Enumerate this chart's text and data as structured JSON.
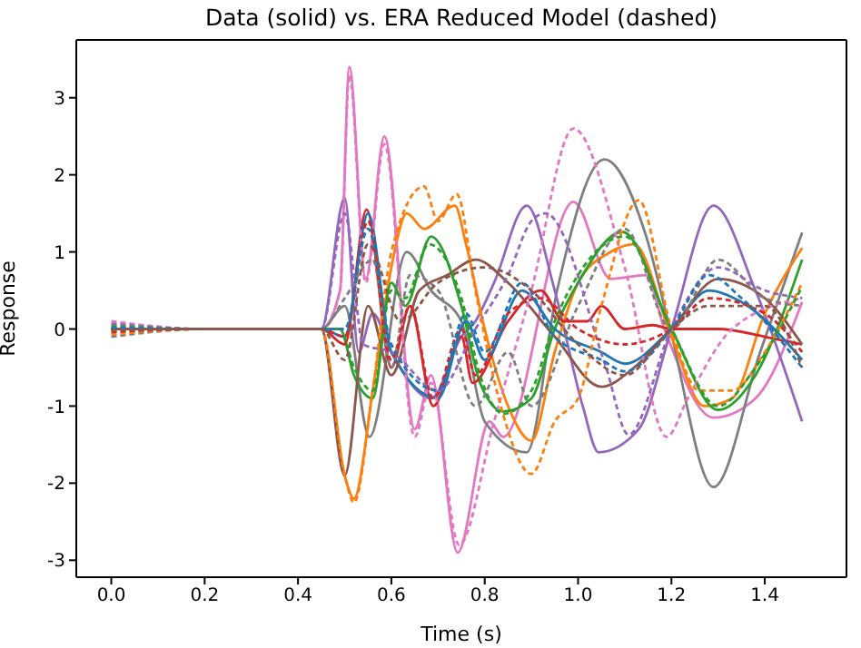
{
  "chart_data": {
    "type": "line",
    "title": "Data (solid) vs. ERA Reduced Model (dashed)",
    "xlabel": "Time (s)",
    "ylabel": "Response",
    "xlim": [
      -0.075,
      1.575
    ],
    "ylim": [
      -3.22,
      3.75
    ],
    "xticks": [
      {
        "value": 0,
        "label": "0.0"
      },
      0.2,
      0.4,
      0.6,
      0.8,
      {
        "value": 1,
        "label": "1.0"
      },
      1.2,
      1.4
    ],
    "yticks": [
      -3,
      -2,
      -1,
      0,
      1,
      2,
      3
    ],
    "marker": "none",
    "series": [
      {
        "color": "#e377c2",
        "line_style": "solid",
        "x": [
          0,
          0.2,
          0.45,
          0.49,
          0.51,
          0.545,
          0.585,
          0.65,
          0.685,
          0.742,
          0.81,
          0.84,
          0.99,
          1.07,
          1.145,
          1.185,
          1.29,
          1.38,
          1.48
        ],
        "values": [
          0,
          0,
          0,
          0.5,
          3.4,
          0.65,
          2.5,
          -1.3,
          -0.6,
          -2.9,
          -1.2,
          -1.4,
          1.65,
          0.65,
          0.7,
          0,
          -1.15,
          -0.9,
          0.35
        ]
      },
      {
        "color": "#e377c2",
        "line_style": "dashed",
        "x": [
          0,
          0.2,
          0.45,
          0.49,
          0.51,
          0.545,
          0.585,
          0.65,
          0.685,
          0.745,
          0.82,
          0.9,
          0.99,
          1.1,
          1.19,
          1.235,
          1.33,
          1.48
        ],
        "values": [
          0.1,
          0,
          0,
          0.5,
          3.3,
          0.6,
          2.4,
          -1.4,
          -0.7,
          -2.8,
          -1.2,
          0.5,
          2.6,
          0.8,
          -1.4,
          -0.9,
          0,
          0.4
        ]
      },
      {
        "color": "#7f7f7f",
        "line_style": "solid",
        "x": [
          0,
          0.2,
          0.45,
          0.5,
          0.553,
          0.633,
          0.685,
          0.75,
          0.8,
          0.89,
          0.955,
          1.056,
          1.146,
          1.197,
          1.29,
          1.39,
          1.48
        ],
        "values": [
          0,
          0,
          0,
          0.3,
          -1.4,
          1.0,
          0.5,
          0.1,
          -1.2,
          -1.6,
          0.5,
          2.2,
          1.2,
          0,
          -2.05,
          -0.3,
          1.25
        ]
      },
      {
        "color": "#7f7f7f",
        "line_style": "dashed",
        "x": [
          0,
          0.2,
          0.45,
          0.5,
          0.56,
          0.6,
          0.64,
          0.7,
          0.78,
          0.85,
          0.9,
          1.0,
          1.1,
          1.2,
          1.3,
          1.4,
          1.48
        ],
        "values": [
          -0.1,
          0,
          0,
          0.4,
          0.9,
          -0.5,
          0.7,
          0.5,
          -1.0,
          -0.3,
          -1.0,
          0.3,
          1.3,
          0,
          0.9,
          0.4,
          0.3
        ]
      },
      {
        "color": "#9467bd",
        "line_style": "solid",
        "x": [
          0,
          0.2,
          0.45,
          0.5,
          0.53,
          0.56,
          0.6,
          0.685,
          0.75,
          0.78,
          0.82,
          0.89,
          0.95,
          1.01,
          1.044,
          1.13,
          1.2,
          1.29,
          1.38,
          1.48
        ],
        "values": [
          0,
          0,
          0,
          1.7,
          -0.3,
          0.2,
          -0.3,
          -0.9,
          -0.1,
          0.1,
          0.6,
          1.6,
          0.5,
          -1.0,
          -1.6,
          -1.3,
          0,
          1.6,
          0.5,
          -1.2
        ]
      },
      {
        "color": "#9467bd",
        "line_style": "dashed",
        "x": [
          0,
          0.2,
          0.45,
          0.5,
          0.54,
          0.6,
          0.7,
          0.78,
          0.85,
          0.9,
          0.93,
          1.06,
          1.108,
          1.2,
          1.3,
          1.4,
          1.48
        ],
        "values": [
          0.07,
          0,
          0,
          1.5,
          -0.2,
          -0.3,
          -0.8,
          0,
          0.7,
          1.4,
          1.5,
          -0.5,
          -1.37,
          0,
          0.8,
          0.5,
          0.4
        ]
      },
      {
        "color": "#ff7f0e",
        "line_style": "solid",
        "x": [
          0,
          0.2,
          0.45,
          0.5,
          0.52,
          0.56,
          0.6,
          0.633,
          0.67,
          0.736,
          0.76,
          0.8,
          0.85,
          0.9,
          0.95,
          1.0,
          1.07,
          1.12,
          1.2,
          1.27,
          1.33,
          1.4,
          1.48
        ],
        "values": [
          0,
          0,
          0,
          -1.9,
          -2.2,
          -0.8,
          0.8,
          1.5,
          1.3,
          1.6,
          1.1,
          0,
          -1.0,
          -1.45,
          -0.3,
          0.6,
          1.0,
          1.1,
          -0.1,
          -1.0,
          -0.9,
          0.2,
          1.05
        ]
      },
      {
        "color": "#ff7f0e",
        "line_style": "dashed",
        "x": [
          0,
          0.2,
          0.45,
          0.5,
          0.52,
          0.56,
          0.6,
          0.67,
          0.7,
          0.74,
          0.78,
          0.83,
          0.9,
          0.95,
          1.0,
          1.05,
          1.13,
          1.2,
          1.26,
          1.33,
          1.4,
          1.48
        ],
        "values": [
          -0.07,
          0,
          0,
          -1.9,
          -2.25,
          -0.8,
          1.0,
          1.85,
          1.4,
          1.75,
          0.5,
          -0.9,
          -1.88,
          -1.2,
          -0.9,
          0.3,
          1.67,
          0,
          -0.8,
          -0.8,
          -0.3,
          0.6
        ]
      },
      {
        "color": "#2ca02c",
        "line_style": "solid",
        "x": [
          0,
          0.2,
          0.45,
          0.49,
          0.52,
          0.56,
          0.6,
          0.63,
          0.685,
          0.75,
          0.79,
          0.84,
          0.9,
          0.95,
          1.0,
          1.095,
          1.2,
          1.3,
          1.38,
          1.48
        ],
        "values": [
          0,
          0,
          0,
          0,
          -0.6,
          -0.9,
          0.6,
          0.3,
          1.2,
          0.3,
          -0.7,
          -1.07,
          -0.9,
          0,
          0.6,
          1.26,
          0,
          -1.05,
          -0.6,
          0.9
        ]
      },
      {
        "color": "#2ca02c",
        "line_style": "dashed",
        "x": [
          0,
          0.2,
          0.45,
          0.49,
          0.52,
          0.56,
          0.6,
          0.63,
          0.68,
          0.75,
          0.79,
          0.84,
          0.9,
          0.95,
          1.0,
          1.1,
          1.2,
          1.3,
          1.38,
          1.48
        ],
        "values": [
          0.04,
          0,
          0,
          0,
          -0.5,
          -0.8,
          0.5,
          0.4,
          1.1,
          0.4,
          -0.6,
          -1.1,
          -0.8,
          0.1,
          0.7,
          1.2,
          0,
          -1.0,
          -0.5,
          0.55
        ]
      },
      {
        "color": "#d62728",
        "line_style": "solid",
        "x": [
          0,
          0.2,
          0.45,
          0.5,
          0.547,
          0.6,
          0.64,
          0.69,
          0.75,
          0.774,
          0.85,
          0.92,
          0.97,
          1.02,
          1.05,
          1.1,
          1.16,
          1.2,
          1.3,
          1.4,
          1.48
        ],
        "values": [
          0,
          0,
          0,
          -0.2,
          1.55,
          -0.5,
          0.3,
          -1.0,
          -0.1,
          -0.7,
          0.1,
          0.5,
          0.1,
          0.1,
          0.3,
          0,
          0.05,
          0,
          0,
          -0.1,
          -0.2
        ]
      },
      {
        "color": "#d62728",
        "line_style": "dashed",
        "x": [
          0,
          0.2,
          0.45,
          0.5,
          0.55,
          0.6,
          0.64,
          0.69,
          0.75,
          0.78,
          0.85,
          0.92,
          1.0,
          1.1,
          1.2,
          1.28,
          1.4,
          1.48
        ],
        "values": [
          -0.04,
          0,
          0,
          -0.1,
          1.4,
          -0.4,
          0.3,
          -0.9,
          0,
          -0.6,
          0.2,
          0.4,
          0,
          -0.2,
          0,
          0.4,
          0.2,
          -0.3
        ]
      },
      {
        "color": "#1f77b4",
        "line_style": "solid",
        "x": [
          0,
          0.2,
          0.45,
          0.5,
          0.55,
          0.6,
          0.7,
          0.76,
          0.8,
          0.88,
          0.95,
          1.05,
          1.1,
          1.2,
          1.28,
          1.35,
          1.48
        ],
        "values": [
          0,
          0,
          0,
          -0.1,
          1.5,
          -0.3,
          -0.9,
          0.1,
          -0.4,
          0.5,
          0,
          -0.3,
          -0.45,
          0,
          0.5,
          0.35,
          -0.4
        ]
      },
      {
        "color": "#1f77b4",
        "line_style": "dashed",
        "x": [
          0,
          0.2,
          0.45,
          0.5,
          0.55,
          0.6,
          0.7,
          0.76,
          0.8,
          0.88,
          0.95,
          1.05,
          1.1,
          1.2,
          1.28,
          1.35,
          1.48
        ],
        "values": [
          0.02,
          0,
          0,
          0,
          1.3,
          -0.2,
          -0.8,
          0.2,
          -0.3,
          0.6,
          -0.1,
          -0.4,
          -0.55,
          0,
          0.7,
          0.4,
          -0.5
        ]
      },
      {
        "color": "#8c564b",
        "line_style": "solid",
        "x": [
          0,
          0.2,
          0.45,
          0.5,
          0.55,
          0.6,
          0.66,
          0.72,
          0.78,
          0.85,
          0.95,
          1.05,
          1.12,
          1.2,
          1.3,
          1.4,
          1.48
        ],
        "values": [
          0,
          0,
          0,
          -1.9,
          0.3,
          -0.6,
          0.5,
          0.7,
          0.9,
          0.6,
          -0.1,
          -0.75,
          -0.5,
          0,
          0.65,
          0.4,
          -0.2
        ]
      },
      {
        "color": "#8c564b",
        "line_style": "dashed",
        "x": [
          0,
          0.2,
          0.45,
          0.5,
          0.55,
          0.62,
          0.7,
          0.8,
          0.9,
          1.0,
          1.1,
          1.2,
          1.28,
          1.4,
          1.48
        ],
        "values": [
          -0.02,
          0,
          0,
          -0.4,
          1.1,
          0.1,
          0.6,
          0.8,
          0.5,
          -0.2,
          -0.6,
          0,
          0.3,
          0.3,
          -0.5
        ]
      }
    ]
  }
}
